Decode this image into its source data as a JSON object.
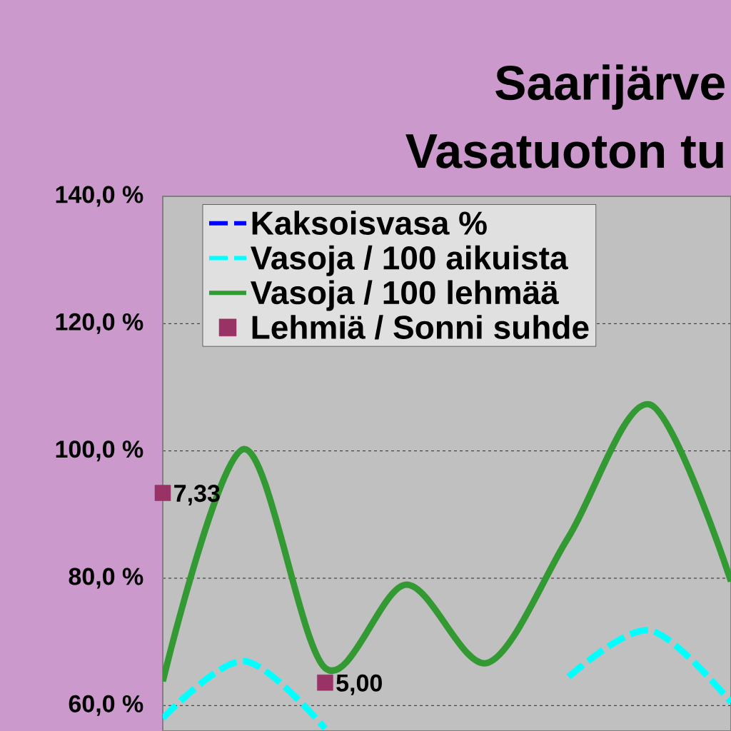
{
  "chart_data": {
    "type": "line",
    "title": "Saarijärve",
    "subtitle": "Vasatuoton tu",
    "categories": [
      null,
      null,
      null,
      null,
      null,
      null,
      null,
      null
    ],
    "series": [
      {
        "name": "Kaksoisvasa %",
        "color": "#0000ff",
        "line_style": "dashed",
        "values": [
          null,
          null,
          null,
          null,
          null,
          null,
          null,
          null
        ]
      },
      {
        "name": "Vasoja / 100 aikuista",
        "color": "#00ffff",
        "line_style": "dashed",
        "values": [
          58.0,
          67.0,
          56.4,
          null,
          null,
          64.5,
          71.8,
          60.5
        ]
      },
      {
        "name": "Vasoja / 100 lehmää",
        "color": "#339933",
        "line_style": "solid",
        "values": [
          63.8,
          100.3,
          65.9,
          79.0,
          66.7,
          86.5,
          107.3,
          79.5
        ]
      },
      {
        "name": "Lehmiä / Sonni suhde",
        "color": "#993366",
        "type": "scatter",
        "marker": "square",
        "values": [
          93.4,
          null,
          63.6,
          null,
          null,
          null,
          null,
          null
        ]
      }
    ],
    "annotations": [
      "7,33",
      "5,00"
    ],
    "ylim": [
      56,
      140
    ],
    "yticks": [
      {
        "value": 60,
        "label": "60,0 %"
      },
      {
        "value": 80,
        "label": "80,0 %"
      },
      {
        "value": 100,
        "label": "100,0 %"
      },
      {
        "value": 120,
        "label": "120,0 %"
      },
      {
        "value": 140,
        "label": "140,0 %"
      }
    ],
    "grid": "y",
    "legend": "top left",
    "tick_labels": "y"
  }
}
